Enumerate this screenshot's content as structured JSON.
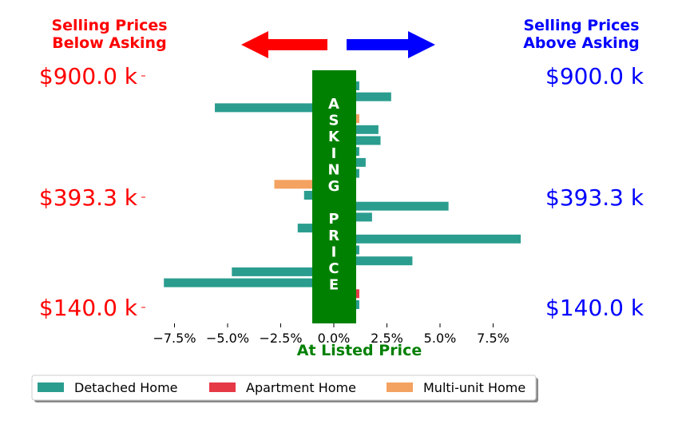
{
  "header": {
    "below_line1": "Selling Prices",
    "below_line2": "Below Asking",
    "above_line1": "Selling Prices",
    "above_line2": "Above Asking",
    "below_color": "#ff0000",
    "above_color": "#0000ff",
    "below_arrow_icon": "arrow-left-icon",
    "above_arrow_icon": "arrow-right-icon"
  },
  "band": {
    "letters": [
      "A",
      "S",
      "K",
      "I",
      "N",
      "G",
      "",
      "P",
      "R",
      "I",
      "C",
      "E"
    ],
    "color": "#008000"
  },
  "price_labels": {
    "top": "$900.0 k",
    "mid": "$393.3 k",
    "bottom": "$140.0 k"
  },
  "chart_data": {
    "type": "bar",
    "orientation": "horizontal",
    "xlabel": "At Listed Price",
    "xlabel_color": "#008000",
    "x_ticks": [
      "−7.5%",
      "−5.0%",
      "−2.5%",
      "0.0%",
      "2.5%",
      "5.0%",
      "7.5%"
    ],
    "x_tick_values": [
      -7.5,
      -5.0,
      -2.5,
      0.0,
      2.5,
      5.0,
      7.5
    ],
    "xlim": [
      -8.6,
      9.4
    ],
    "legend": [
      {
        "label": "Detached Home",
        "color": "#2a9d8f"
      },
      {
        "label": "Apartment Home",
        "color": "#e63946"
      },
      {
        "label": "Multi-unit Home",
        "color": "#f4a261"
      }
    ],
    "legend_position": "bottom-center",
    "bars": [
      {
        "rank": 1,
        "category": "Detached Home",
        "value": 1.2
      },
      {
        "rank": 2,
        "category": "Detached Home",
        "value": 2.7
      },
      {
        "rank": 3,
        "category": "Detached Home",
        "value": -5.6
      },
      {
        "rank": 4,
        "category": "Multi-unit Home",
        "value": 1.2
      },
      {
        "rank": 5,
        "category": "Detached Home",
        "value": 2.1
      },
      {
        "rank": 6,
        "category": "Detached Home",
        "value": 2.2
      },
      {
        "rank": 7,
        "category": "Detached Home",
        "value": 1.2
      },
      {
        "rank": 8,
        "category": "Detached Home",
        "value": 1.5
      },
      {
        "rank": 9,
        "category": "Detached Home",
        "value": 1.2
      },
      {
        "rank": 10,
        "category": "Multi-unit Home",
        "value": -2.8
      },
      {
        "rank": 11,
        "category": "Detached Home",
        "value": -1.4
      },
      {
        "rank": 12,
        "category": "Detached Home",
        "value": 5.4
      },
      {
        "rank": 13,
        "category": "Detached Home",
        "value": 1.8
      },
      {
        "rank": 14,
        "category": "Detached Home",
        "value": -1.7
      },
      {
        "rank": 15,
        "category": "Detached Home",
        "value": 8.8
      },
      {
        "rank": 16,
        "category": "Detached Home",
        "value": 1.2
      },
      {
        "rank": 17,
        "category": "Detached Home",
        "value": 3.7
      },
      {
        "rank": 18,
        "category": "Detached Home",
        "value": -4.8
      },
      {
        "rank": 19,
        "category": "Detached Home",
        "value": -8.0
      },
      {
        "rank": 20,
        "category": "Apartment Home",
        "value": 1.2
      },
      {
        "rank": 21,
        "category": "Detached Home",
        "value": 1.2
      }
    ]
  }
}
